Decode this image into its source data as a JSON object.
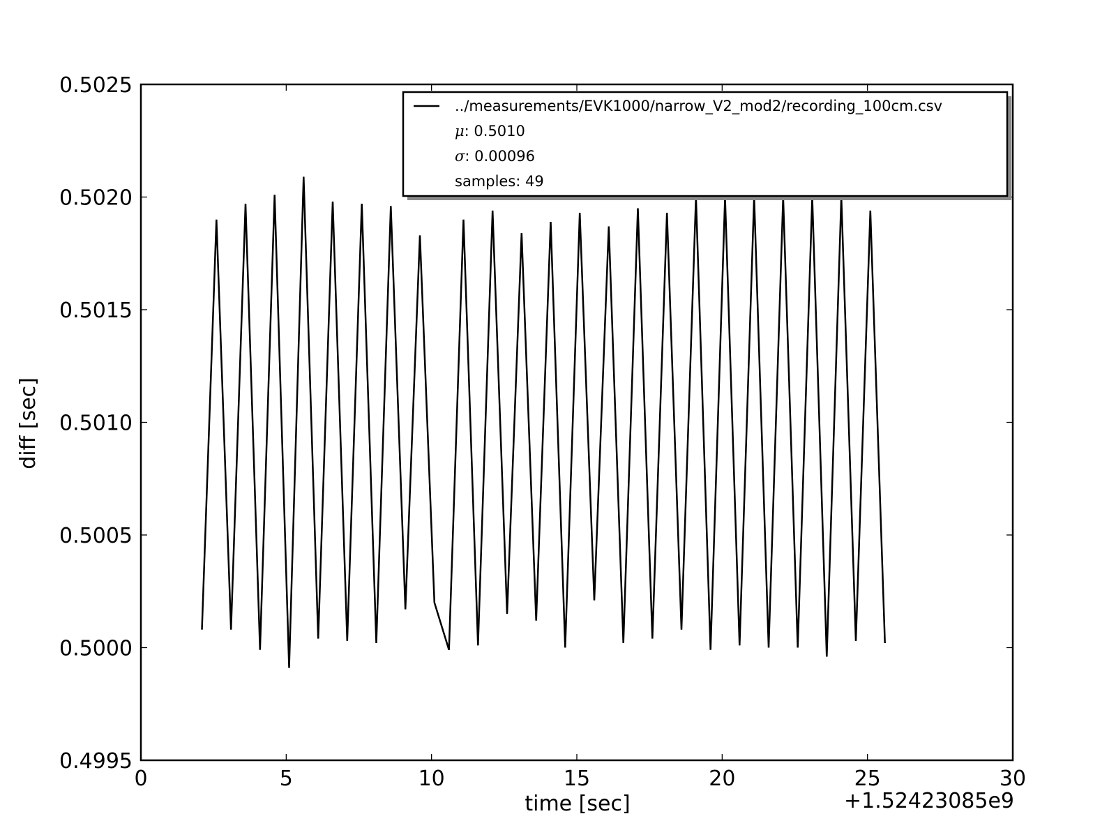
{
  "chart_data": {
    "type": "line",
    "title": "",
    "xlabel": "time [sec]",
    "ylabel": "diff [sec]",
    "x_offset_label": "+1.52423085e9",
    "xlim": [
      0,
      30
    ],
    "ylim": [
      0.4995,
      0.5025
    ],
    "x_ticks": [
      0,
      5,
      10,
      15,
      20,
      25,
      30
    ],
    "x_tick_labels": [
      "0",
      "5",
      "10",
      "15",
      "20",
      "25",
      "30"
    ],
    "y_ticks": [
      0.4995,
      0.5,
      0.5005,
      0.501,
      0.5015,
      0.502,
      0.5025
    ],
    "y_tick_labels": [
      "0.4995",
      "0.5000",
      "0.5005",
      "0.5010",
      "0.5015",
      "0.5020",
      "0.5025"
    ],
    "grid": false,
    "legend_position": "top-right",
    "legend": {
      "series_name": "../measurements/EVK1000/narrow_V2_mod2/recording_100cm.csv",
      "mu_symbol": "μ",
      "mu_text": ": 0.5010",
      "sigma_symbol": "σ",
      "sigma_text": ":  0.00096",
      "samples_text": "samples: 49"
    },
    "series": [
      {
        "name": "../measurements/EVK1000/narrow_V2_mod2/recording_100cm.csv",
        "color": "#000000",
        "x": [
          2.1,
          2.6,
          3.1,
          3.6,
          4.1,
          4.6,
          5.1,
          5.6,
          6.1,
          6.6,
          7.1,
          7.6,
          8.1,
          8.6,
          9.1,
          9.6,
          10.1,
          10.6,
          11.1,
          11.6,
          12.1,
          12.6,
          13.1,
          13.6,
          14.1,
          14.6,
          15.1,
          15.6,
          16.1,
          16.6,
          17.1,
          17.6,
          18.1,
          18.6,
          19.1,
          19.6,
          20.1,
          20.6,
          21.1,
          21.6,
          22.1,
          22.6,
          23.1,
          23.6,
          24.1,
          24.6,
          25.1,
          25.6
        ],
        "y": [
          0.50008,
          0.5019,
          0.50008,
          0.50197,
          0.49999,
          0.50201,
          0.49991,
          0.50209,
          0.50004,
          0.50198,
          0.50003,
          0.50197,
          0.50002,
          0.50196,
          0.50017,
          0.50183,
          0.5002,
          0.49999,
          0.5019,
          0.50001,
          0.50194,
          0.50015,
          0.50184,
          0.50012,
          0.50189,
          0.5,
          0.50193,
          0.50021,
          0.50187,
          0.50002,
          0.50195,
          0.50004,
          0.50193,
          0.50008,
          0.502,
          0.49999,
          0.502,
          0.50001,
          0.502,
          0.5,
          0.502,
          0.5,
          0.502,
          0.49996,
          0.502,
          0.50003,
          0.50194,
          0.50002
        ]
      }
    ]
  }
}
